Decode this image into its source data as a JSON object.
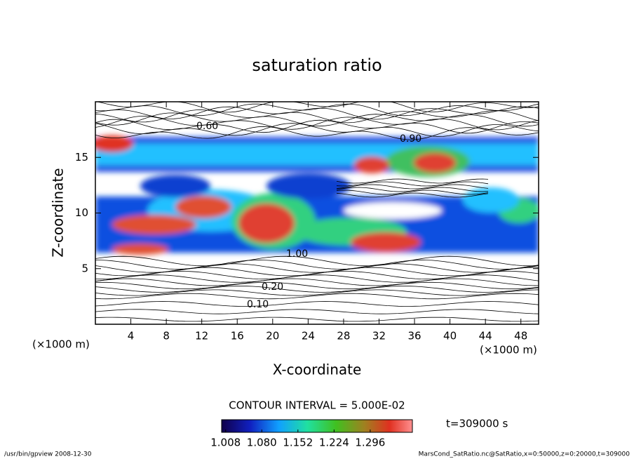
{
  "chart_data": {
    "type": "contour",
    "title": "saturation ratio",
    "x_label": "X-coordinate",
    "y_label": "Z-coordinate",
    "x_unit": "(×1000 m)",
    "y_unit": "(×1000 m)",
    "xlim": [
      0,
      50
    ],
    "xticks": [
      4,
      8,
      12,
      16,
      20,
      24,
      28,
      32,
      36,
      40,
      44,
      48
    ],
    "ylim": [
      0,
      20
    ],
    "yticks": [
      5,
      10,
      15
    ],
    "contour_interval": "CONTOUR INTERVAL = 5.000E-02",
    "time_label": "t=309000 s",
    "contour_labels": [
      {
        "value": 0.1,
        "label": "0.10"
      },
      {
        "value": 0.2,
        "label": "0.20"
      },
      {
        "value": 0.6,
        "label": "0.60"
      },
      {
        "value": 0.9,
        "label": "0.90"
      },
      {
        "value": 1.0,
        "label": "1.00"
      }
    ],
    "colorbar_lim": [
      1.0,
      1.38
    ],
    "colorbar_ticks": [
      1.008,
      {
        "value": 1.08,
        "label": "1.080"
      },
      1.152,
      1.224,
      1.296
    ],
    "footer_left": "/usr/bin/gpview  2008-12-30",
    "footer_right": "MarsCond_SatRatio.nc@SatRatio,x=0:50000,z=0:20000,t=309000"
  }
}
